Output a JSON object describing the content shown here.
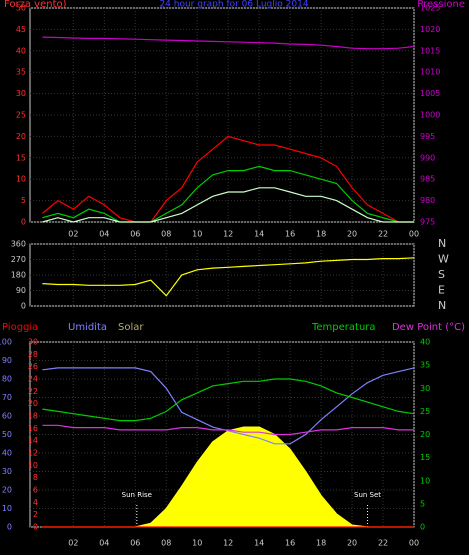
{
  "chart_data": [
    {
      "type": "line",
      "title": "24 hour graph for 06 Luglio 2014",
      "y_label": "Forza vento)",
      "y2_label": "Pressione",
      "x": [
        0,
        1,
        2,
        3,
        4,
        5,
        6,
        7,
        8,
        9,
        10,
        11,
        12,
        13,
        14,
        15,
        16,
        17,
        18,
        19,
        20,
        21,
        22,
        23,
        24
      ],
      "xlim": [
        -0.8,
        24
      ],
      "xticks": [
        {
          "value": 2,
          "label": "02"
        },
        {
          "value": 4,
          "label": "04"
        },
        {
          "value": 6,
          "label": "06"
        },
        {
          "value": 8,
          "label": "08"
        },
        10,
        12,
        14,
        16,
        18,
        20,
        22,
        {
          "value": 24,
          "label": "00"
        }
      ],
      "ylim": [
        0,
        50
      ],
      "yticks": [
        0,
        5,
        10,
        15,
        20,
        25,
        30,
        35,
        40,
        45,
        50
      ],
      "y2lim": [
        975,
        1025
      ],
      "y2ticks": [
        975,
        980,
        985,
        990,
        995,
        1000,
        1005,
        1010,
        1015,
        1020,
        1025
      ],
      "grid": true,
      "series": [
        {
          "color": "#ff0000",
          "values": [
            2,
            5,
            3,
            6,
            4,
            1,
            0,
            0,
            5,
            8,
            14,
            17,
            20,
            19,
            18,
            18,
            17,
            16,
            15,
            13,
            8,
            4,
            2,
            0,
            0
          ]
        },
        {
          "color": "#00cc00",
          "values": [
            1,
            2,
            1,
            3,
            2,
            0,
            0,
            0,
            2,
            4,
            8,
            11,
            12,
            12,
            13,
            12,
            12,
            11,
            10,
            9,
            5,
            2,
            1,
            0,
            0
          ]
        },
        {
          "color": "#ccffcc",
          "values": [
            0,
            1,
            0,
            1,
            1,
            0,
            0,
            0,
            1,
            2,
            4,
            6,
            7,
            7,
            8,
            8,
            7,
            6,
            6,
            5,
            3,
            1,
            0,
            0,
            0
          ]
        },
        {
          "color": "#cc00cc",
          "axis": "y2",
          "values": [
            1018.2,
            1018.1,
            1018,
            1017.9,
            1017.9,
            1017.8,
            1017.7,
            1017.6,
            1017.5,
            1017.4,
            1017.3,
            1017.2,
            1017.1,
            1017,
            1016.9,
            1016.8,
            1016.6,
            1016.5,
            1016.3,
            1016,
            1015.6,
            1015.5,
            1015.5,
            1015.6,
            1016
          ]
        }
      ]
    },
    {
      "type": "line",
      "x": [
        0,
        1,
        2,
        3,
        4,
        5,
        6,
        7,
        8,
        9,
        10,
        11,
        12,
        13,
        14,
        15,
        16,
        17,
        18,
        19,
        20,
        21,
        22,
        23,
        24
      ],
      "xlim": [
        -0.8,
        24
      ],
      "ylim": [
        0,
        360
      ],
      "yticks": [
        0,
        90,
        180,
        270,
        360
      ],
      "y2lim": [
        0,
        360
      ],
      "y2ticks": [
        {
          "value": 0,
          "label": "N"
        },
        {
          "value": 90,
          "label": "E"
        },
        {
          "value": 180,
          "label": "S"
        },
        {
          "value": 270,
          "label": "W"
        },
        {
          "value": 360,
          "label": "N"
        }
      ],
      "grid": true,
      "series": [
        {
          "color": "#ffff00",
          "values": [
            130,
            125,
            125,
            120,
            120,
            120,
            125,
            150,
            60,
            180,
            210,
            220,
            225,
            230,
            235,
            240,
            245,
            250,
            260,
            265,
            270,
            270,
            275,
            275,
            280
          ]
        }
      ]
    },
    {
      "type": "line",
      "x": [
        0,
        1,
        2,
        3,
        4,
        5,
        6,
        7,
        8,
        9,
        10,
        11,
        12,
        13,
        14,
        15,
        16,
        17,
        18,
        19,
        20,
        21,
        22,
        23,
        24
      ],
      "xlim": [
        -0.8,
        24
      ],
      "xticks": [
        {
          "value": 2,
          "label": "02"
        },
        {
          "value": 4,
          "label": "04"
        },
        {
          "value": 6,
          "label": "06"
        },
        {
          "value": 8,
          "label": "08"
        },
        10,
        12,
        14,
        16,
        18,
        20,
        22,
        {
          "value": 24,
          "label": "00"
        }
      ],
      "ylim": [
        0,
        30
      ],
      "yticks": [
        0,
        2,
        4,
        6,
        8,
        10,
        12,
        14,
        16,
        18,
        20,
        22,
        24,
        26,
        28,
        30
      ],
      "y2lim": [
        0,
        40
      ],
      "y2ticks": [
        0,
        5,
        10,
        15,
        20,
        25,
        30,
        35,
        40
      ],
      "y3lim": [
        0,
        100
      ],
      "y3ticks": [
        0,
        10,
        20,
        30,
        40,
        50,
        60,
        70,
        80,
        90,
        100
      ],
      "grid": true,
      "annotations": [
        {
          "text": "Sun Rise",
          "x": 6.1
        },
        {
          "text": "Sun Set",
          "x": 21
        }
      ],
      "series": [
        {
          "name": "Solar",
          "color": "#ffff00",
          "label_color": "#b0b070",
          "axis": "y3",
          "area": true,
          "values": [
            0,
            0,
            0,
            0,
            0,
            0,
            0,
            2,
            10,
            22,
            35,
            46,
            52,
            54,
            54,
            50,
            42,
            30,
            17,
            7,
            1,
            0,
            0,
            0,
            0
          ]
        },
        {
          "name": "Pioggia",
          "color": "#ff0000",
          "values": [
            0,
            0,
            0,
            0,
            0,
            0,
            0,
            0,
            0,
            0,
            0,
            0,
            0,
            0,
            0,
            0,
            0,
            0,
            0,
            0,
            0,
            0,
            0,
            0,
            0
          ]
        },
        {
          "name": "Umidita",
          "color": "#8080ff",
          "axis": "y3",
          "values": [
            85,
            86,
            86,
            86,
            86,
            86,
            86,
            84,
            75,
            62,
            58,
            54,
            52,
            50,
            48,
            45,
            45,
            50,
            58,
            65,
            72,
            78,
            82,
            84,
            86
          ]
        },
        {
          "name": "Temperatura",
          "color": "#00cc00",
          "axis": "y2",
          "values": [
            25.5,
            25,
            24.5,
            24,
            23.5,
            23,
            23,
            23.5,
            25,
            27.5,
            29,
            30.5,
            31,
            31.5,
            31.5,
            32,
            32,
            31.5,
            30.5,
            29,
            28,
            27,
            26,
            25,
            24.5
          ]
        },
        {
          "name": "Dew Point (°C)",
          "color": "#dd33dd",
          "axis": "y2",
          "values": [
            22,
            22,
            21.5,
            21.5,
            21.5,
            21,
            21,
            21,
            21,
            21.5,
            21.5,
            21,
            21,
            20.5,
            20.5,
            20,
            20,
            20.5,
            21,
            21,
            21.5,
            21.5,
            21.5,
            21,
            21
          ]
        }
      ]
    }
  ]
}
